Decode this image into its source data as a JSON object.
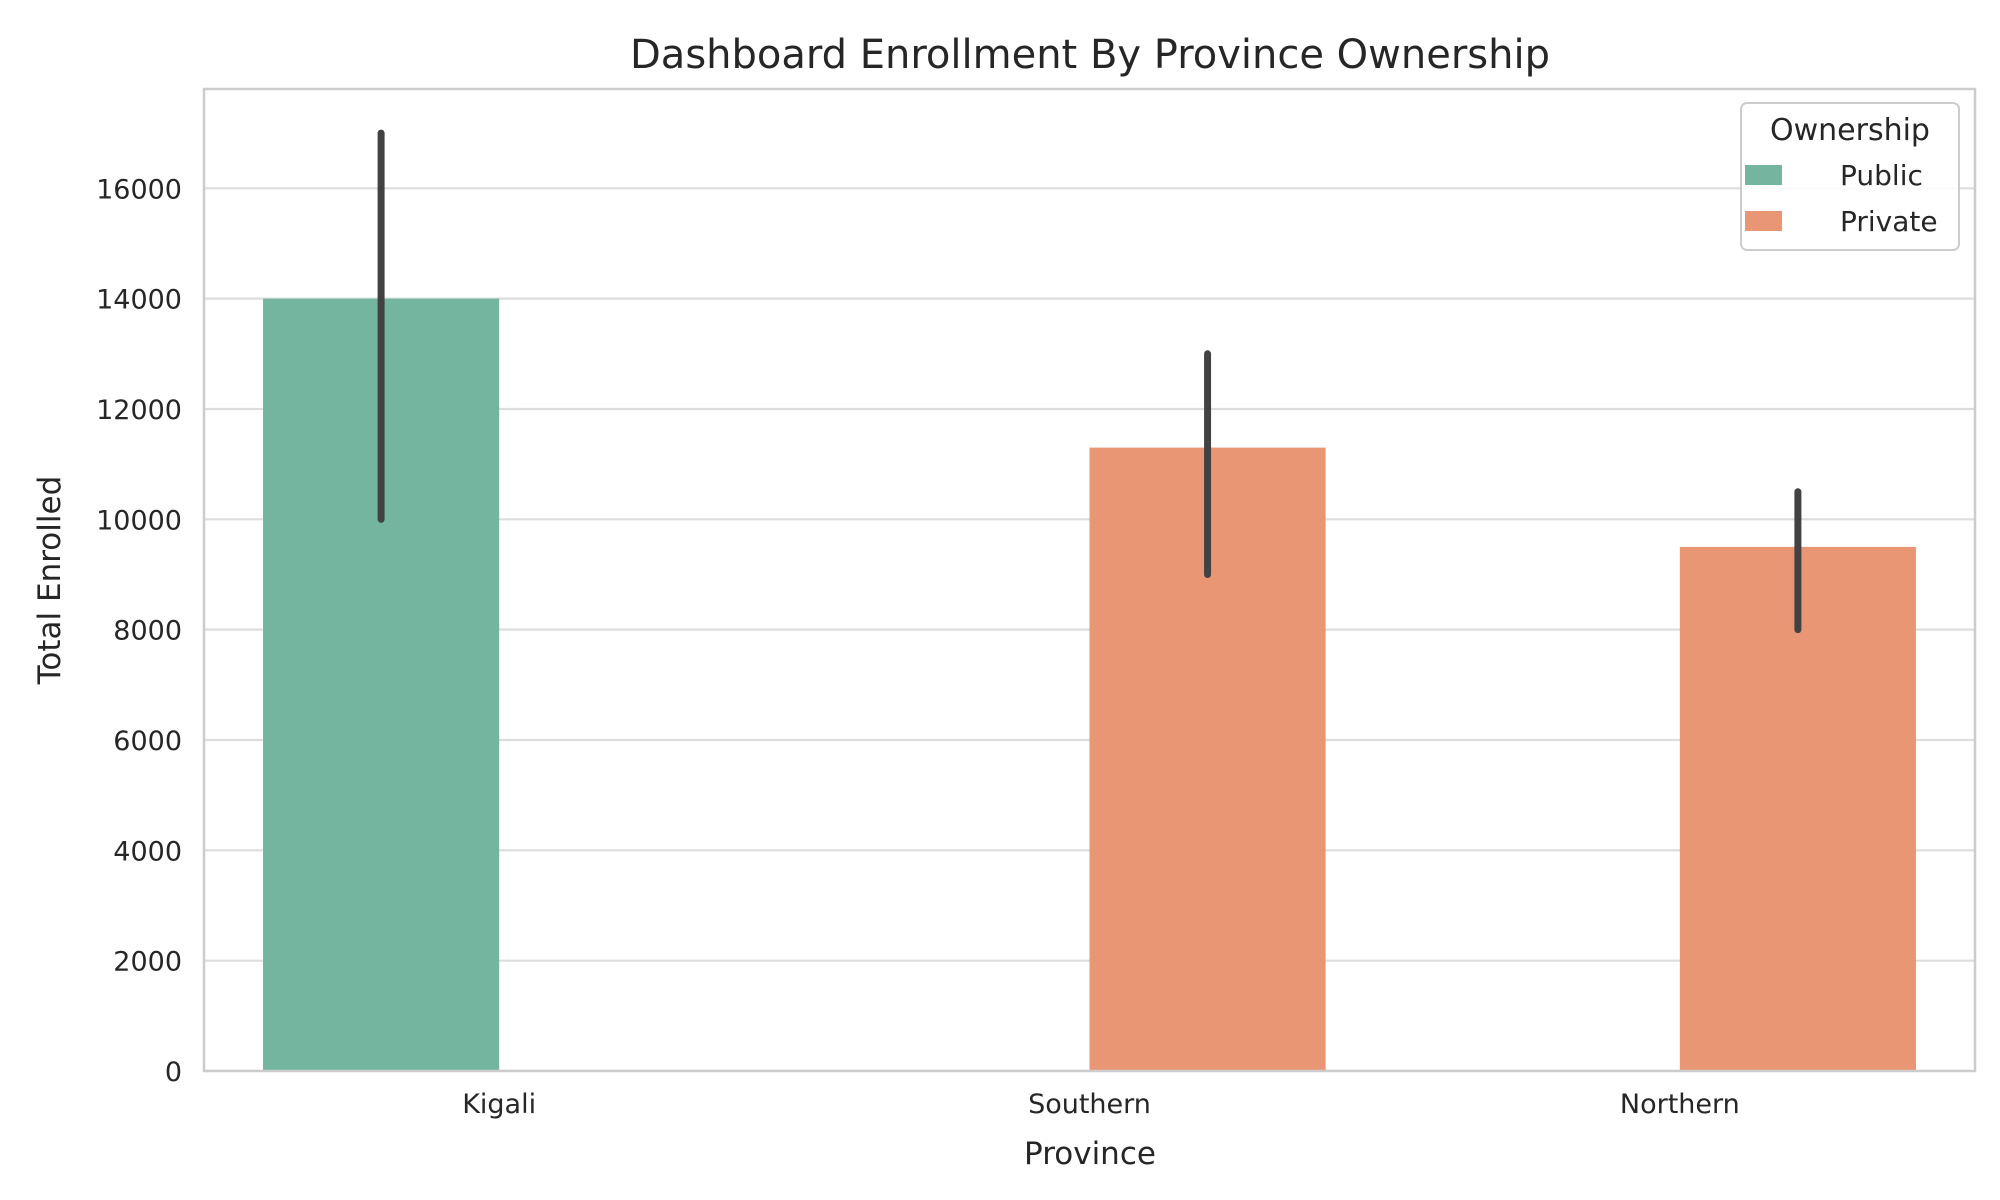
{
  "chart_data": {
    "type": "bar",
    "title": "Dashboard Enrollment By Province Ownership",
    "xlabel": "Province",
    "ylabel": "Total Enrolled",
    "categories": [
      "Kigali",
      "Southern",
      "Northern"
    ],
    "ylim": [
      0,
      17800
    ],
    "yticks": [
      0,
      2000,
      4000,
      6000,
      8000,
      10000,
      12000,
      14000,
      16000
    ],
    "ytick_labels": [
      "0",
      "2000",
      "4000",
      "6000",
      "8000",
      "10000",
      "12000",
      "14000",
      "16000"
    ],
    "grid": true,
    "legend": {
      "title": "Ownership",
      "position": "top-right"
    },
    "series": [
      {
        "name": "Public",
        "color": "#74b5a0",
        "values": [
          14000,
          null,
          null
        ],
        "error_low": [
          10000,
          null,
          null
        ],
        "error_high": [
          17000,
          null,
          null
        ]
      },
      {
        "name": "Private",
        "color": "#e99675",
        "values": [
          null,
          11300,
          9500
        ],
        "error_low": [
          null,
          9000,
          8000
        ],
        "error_high": [
          null,
          13000,
          10500
        ]
      }
    ],
    "error_bar_color": "#424242"
  }
}
